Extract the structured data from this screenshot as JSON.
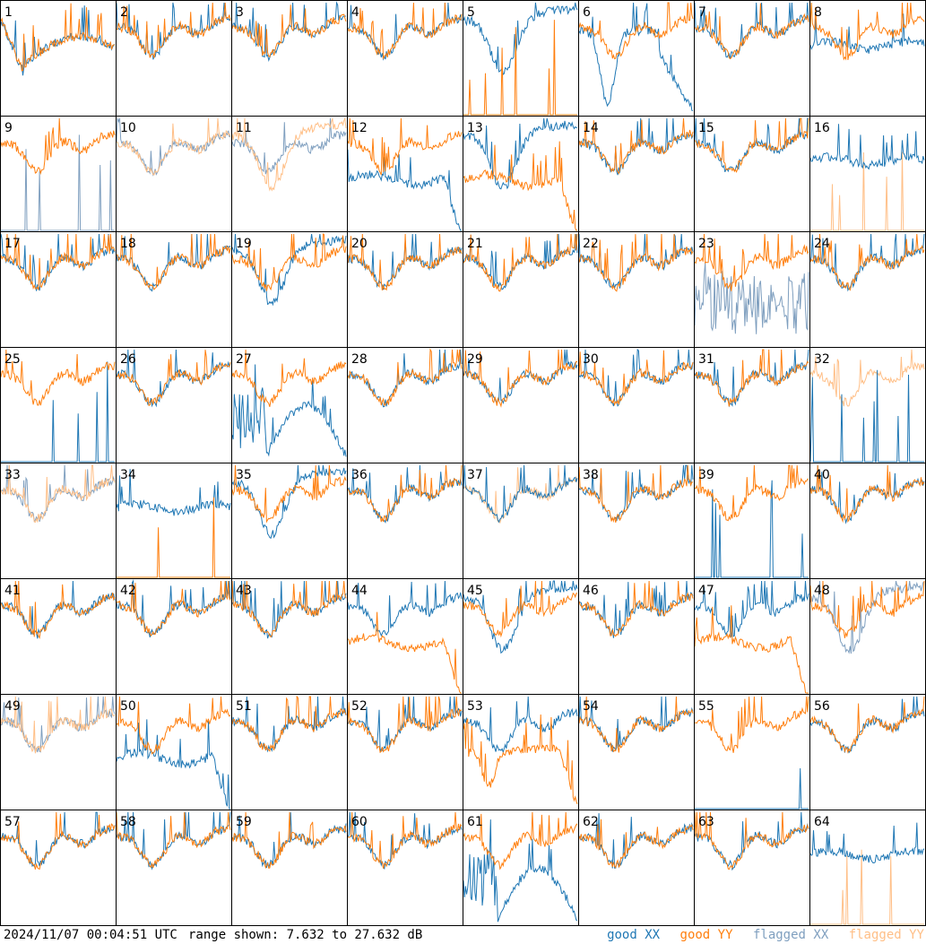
{
  "timestamp": "2024/11/07 00:04:51 UTC",
  "range_text": "range shown: 7.632 to 27.632 dB",
  "legend": [
    {
      "label": "good XX",
      "color": "#1f77b4"
    },
    {
      "label": "good YY",
      "color": "#ff7f0e"
    },
    {
      "label": "flagged XX",
      "color": "#7f9fbf"
    },
    {
      "label": "flagged YY",
      "color": "#ffbf87"
    }
  ],
  "chart_data": {
    "type": "line",
    "ylim": [
      7.632,
      27.632
    ],
    "grid": {
      "rows": 8,
      "cols": 8
    },
    "panels": [
      {
        "id": 1,
        "xx": "good",
        "yy": "good",
        "xx_shape": "dip_flat",
        "yy_shape": "dip_flat"
      },
      {
        "id": 2,
        "xx": "good",
        "yy": "good",
        "xx_shape": "normal",
        "yy_shape": "normal"
      },
      {
        "id": 3,
        "xx": "good",
        "yy": "good",
        "xx_shape": "normal",
        "yy_shape": "normal"
      },
      {
        "id": 4,
        "xx": "good",
        "yy": "good",
        "xx_shape": "normal",
        "yy_shape": "normal"
      },
      {
        "id": 5,
        "xx": "good",
        "yy": "good",
        "xx_shape": "deep",
        "yy_shape": "spiky"
      },
      {
        "id": 6,
        "xx": "good",
        "yy": "good",
        "xx_shape": "deep_bowl",
        "yy_shape": "normal"
      },
      {
        "id": 7,
        "xx": "good",
        "yy": "good",
        "xx_shape": "normal",
        "yy_shape": "normal"
      },
      {
        "id": 8,
        "xx": "good",
        "yy": "good",
        "xx_shape": "flat",
        "yy_shape": "normal"
      },
      {
        "id": 9,
        "xx": "flagged",
        "yy": "good",
        "xx_shape": "spiky",
        "yy_shape": "normal"
      },
      {
        "id": 10,
        "xx": "flagged",
        "yy": "flagged",
        "xx_shape": "normal",
        "yy_shape": "normal"
      },
      {
        "id": 11,
        "xx": "flagged",
        "yy": "flagged",
        "xx_shape": "normal",
        "yy_shape": "deep"
      },
      {
        "id": 12,
        "xx": "good",
        "yy": "good",
        "xx_shape": "flat_drop",
        "yy_shape": "normal"
      },
      {
        "id": 13,
        "xx": "good",
        "yy": "good",
        "xx_shape": "deep",
        "yy_shape": "flat_drop"
      },
      {
        "id": 14,
        "xx": "good",
        "yy": "good",
        "xx_shape": "normal",
        "yy_shape": "normal"
      },
      {
        "id": 15,
        "xx": "good",
        "yy": "good",
        "xx_shape": "normal",
        "yy_shape": "normal"
      },
      {
        "id": 16,
        "xx": "good",
        "yy": "flagged",
        "xx_shape": "flat",
        "yy_shape": "spiky"
      },
      {
        "id": 17,
        "xx": "good",
        "yy": "good",
        "xx_shape": "normal",
        "yy_shape": "normal"
      },
      {
        "id": 18,
        "xx": "good",
        "yy": "good",
        "xx_shape": "normal",
        "yy_shape": "normal"
      },
      {
        "id": 19,
        "xx": "good",
        "yy": "good",
        "xx_shape": "deep",
        "yy_shape": "normal"
      },
      {
        "id": 20,
        "xx": "good",
        "yy": "good",
        "xx_shape": "normal",
        "yy_shape": "normal"
      },
      {
        "id": 21,
        "xx": "good",
        "yy": "good",
        "xx_shape": "normal",
        "yy_shape": "normal"
      },
      {
        "id": 22,
        "xx": "good",
        "yy": "good",
        "xx_shape": "normal",
        "yy_shape": "normal"
      },
      {
        "id": 23,
        "xx": "flagged",
        "yy": "good",
        "xx_shape": "noisy_low",
        "yy_shape": "normal"
      },
      {
        "id": 24,
        "xx": "good",
        "yy": "good",
        "xx_shape": "normal",
        "yy_shape": "normal"
      },
      {
        "id": 25,
        "xx": "good",
        "yy": "good",
        "xx_shape": "spiky",
        "yy_shape": "normal"
      },
      {
        "id": 26,
        "xx": "good",
        "yy": "good",
        "xx_shape": "normal",
        "yy_shape": "normal"
      },
      {
        "id": 27,
        "xx": "good",
        "yy": "good",
        "xx_shape": "bowl_noisy",
        "yy_shape": "normal"
      },
      {
        "id": 28,
        "xx": "good",
        "yy": "good",
        "xx_shape": "normal",
        "yy_shape": "normal"
      },
      {
        "id": 29,
        "xx": "good",
        "yy": "good",
        "xx_shape": "normal",
        "yy_shape": "normal"
      },
      {
        "id": 30,
        "xx": "good",
        "yy": "good",
        "xx_shape": "normal",
        "yy_shape": "normal"
      },
      {
        "id": 31,
        "xx": "good",
        "yy": "good",
        "xx_shape": "normal",
        "yy_shape": "normal"
      },
      {
        "id": 32,
        "xx": "good",
        "yy": "flagged",
        "xx_shape": "spiky",
        "yy_shape": "normal"
      },
      {
        "id": 33,
        "xx": "flagged",
        "yy": "flagged",
        "xx_shape": "normal",
        "yy_shape": "normal"
      },
      {
        "id": 34,
        "xx": "good",
        "yy": "good",
        "xx_shape": "flat",
        "yy_shape": "spiky"
      },
      {
        "id": 35,
        "xx": "good",
        "yy": "good",
        "xx_shape": "deep",
        "yy_shape": "normal"
      },
      {
        "id": 36,
        "xx": "good",
        "yy": "good",
        "xx_shape": "normal",
        "yy_shape": "normal"
      },
      {
        "id": 37,
        "xx": "good",
        "yy": "flagged",
        "xx_shape": "normal",
        "yy_shape": "normal"
      },
      {
        "id": 38,
        "xx": "good",
        "yy": "good",
        "xx_shape": "normal",
        "yy_shape": "normal"
      },
      {
        "id": 39,
        "xx": "good",
        "yy": "good",
        "xx_shape": "spiky",
        "yy_shape": "normal"
      },
      {
        "id": 40,
        "xx": "good",
        "yy": "good",
        "xx_shape": "normal",
        "yy_shape": "normal"
      },
      {
        "id": 41,
        "xx": "good",
        "yy": "good",
        "xx_shape": "normal",
        "yy_shape": "normal"
      },
      {
        "id": 42,
        "xx": "good",
        "yy": "good",
        "xx_shape": "normal",
        "yy_shape": "normal"
      },
      {
        "id": 43,
        "xx": "good",
        "yy": "good",
        "xx_shape": "normal",
        "yy_shape": "normal"
      },
      {
        "id": 44,
        "xx": "good",
        "yy": "good",
        "xx_shape": "normal",
        "yy_shape": "flat_drop"
      },
      {
        "id": 45,
        "xx": "good",
        "yy": "good",
        "xx_shape": "deep",
        "yy_shape": "normal"
      },
      {
        "id": 46,
        "xx": "good",
        "yy": "good",
        "xx_shape": "normal",
        "yy_shape": "normal"
      },
      {
        "id": 47,
        "xx": "good",
        "yy": "good",
        "xx_shape": "normal",
        "yy_shape": "flat_drop"
      },
      {
        "id": 48,
        "xx": "flagged",
        "yy": "good",
        "xx_shape": "deep",
        "yy_shape": "normal"
      },
      {
        "id": 49,
        "xx": "flagged",
        "yy": "flagged",
        "xx_shape": "normal",
        "yy_shape": "normal"
      },
      {
        "id": 50,
        "xx": "good",
        "yy": "good",
        "xx_shape": "flat_drop",
        "yy_shape": "normal"
      },
      {
        "id": 51,
        "xx": "good",
        "yy": "good",
        "xx_shape": "normal",
        "yy_shape": "normal"
      },
      {
        "id": 52,
        "xx": "good",
        "yy": "good",
        "xx_shape": "normal",
        "yy_shape": "normal"
      },
      {
        "id": 53,
        "xx": "good",
        "yy": "good",
        "xx_shape": "normal",
        "yy_shape": "bowl_drop"
      },
      {
        "id": 54,
        "xx": "good",
        "yy": "good",
        "xx_shape": "normal",
        "yy_shape": "normal"
      },
      {
        "id": 55,
        "xx": "good",
        "yy": "good",
        "xx_shape": "spiky",
        "yy_shape": "normal"
      },
      {
        "id": 56,
        "xx": "good",
        "yy": "good",
        "xx_shape": "normal",
        "yy_shape": "normal"
      },
      {
        "id": 57,
        "xx": "good",
        "yy": "good",
        "xx_shape": "normal",
        "yy_shape": "normal"
      },
      {
        "id": 58,
        "xx": "good",
        "yy": "good",
        "xx_shape": "normal",
        "yy_shape": "normal"
      },
      {
        "id": 59,
        "xx": "good",
        "yy": "good",
        "xx_shape": "normal",
        "yy_shape": "normal"
      },
      {
        "id": 60,
        "xx": "good",
        "yy": "good",
        "xx_shape": "normal",
        "yy_shape": "normal"
      },
      {
        "id": 61,
        "xx": "good",
        "yy": "good",
        "xx_shape": "bowl_noisy",
        "yy_shape": "normal"
      },
      {
        "id": 62,
        "xx": "good",
        "yy": "good",
        "xx_shape": "normal",
        "yy_shape": "normal"
      },
      {
        "id": 63,
        "xx": "good",
        "yy": "good",
        "xx_shape": "normal",
        "yy_shape": "normal"
      },
      {
        "id": 64,
        "xx": "good",
        "yy": "flagged",
        "xx_shape": "flat",
        "yy_shape": "spiky"
      }
    ]
  }
}
